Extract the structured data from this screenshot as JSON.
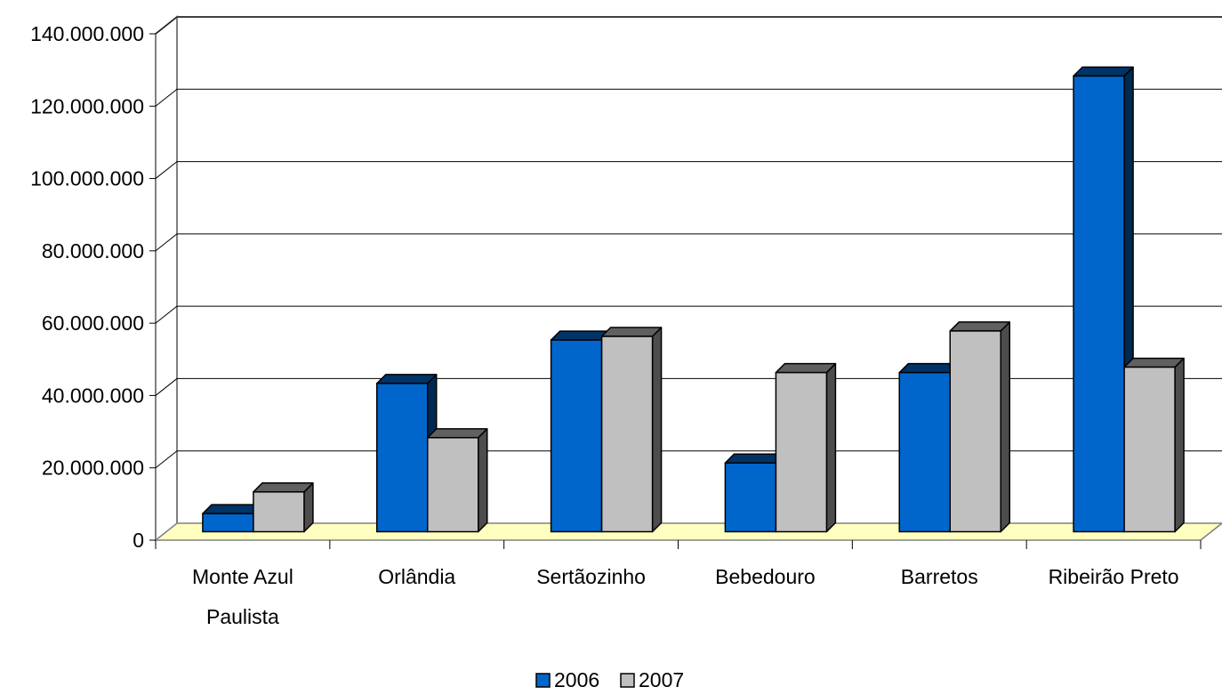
{
  "chart_data": {
    "type": "bar",
    "title": "",
    "xlabel": "",
    "ylabel": "",
    "categories": [
      [
        "Monte Azul",
        "Paulista"
      ],
      [
        "Orlândia"
      ],
      [
        "Sertãozinho"
      ],
      [
        "Bebedouro"
      ],
      [
        "Barretos"
      ],
      [
        "Ribeirão Preto"
      ]
    ],
    "series": [
      {
        "name": "2006",
        "color": "#0066CC",
        "values": [
          5000000,
          41000000,
          53000000,
          19000000,
          44000000,
          126000000
        ]
      },
      {
        "name": "2007",
        "color": "#C0C0C0",
        "values": [
          11000000,
          26000000,
          54000000,
          44000000,
          55500000,
          45500000
        ]
      }
    ],
    "y_ticks": [
      "0",
      "20.000.000",
      "40.000.000",
      "60.000.000",
      "80.000.000",
      "100.000.000",
      "120.000.000",
      "140.000.000"
    ],
    "ylim": [
      0,
      140000000
    ],
    "grid": true,
    "legend_position": "bottom",
    "floor_color": "#FFFFC0",
    "style": "3d-column"
  }
}
